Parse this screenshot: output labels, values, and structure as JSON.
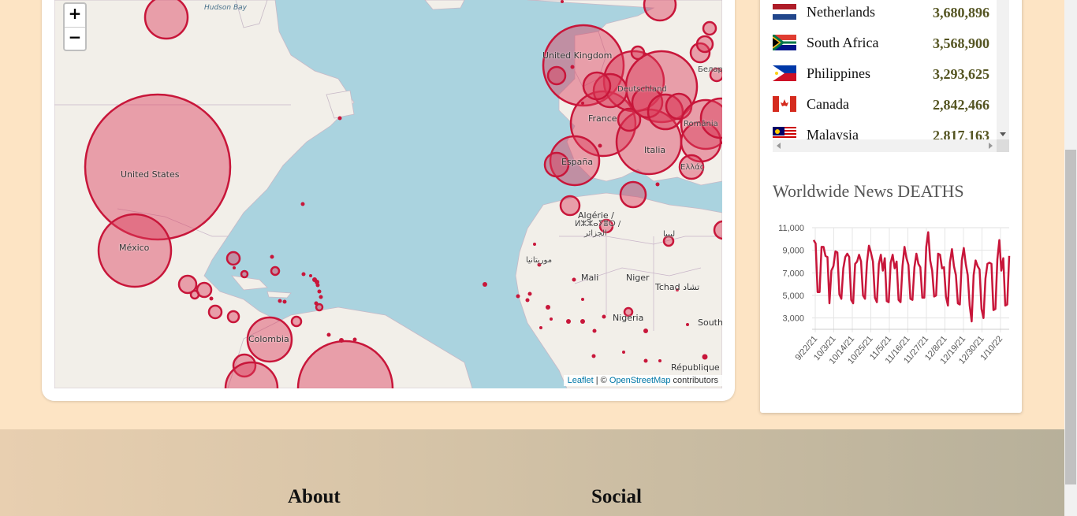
{
  "map": {
    "zoom_in": "+",
    "zoom_out": "−",
    "attribution": {
      "leaflet": "Leaflet",
      "sep": " | © ",
      "osm": "OpenStreetMap",
      "suffix": " contributors"
    },
    "labels": {
      "hudson_bay": "Hudson Bay",
      "united_states": "United States",
      "mexico": "México",
      "colombia": "Colombia",
      "united_kingdom": "United Kingdom",
      "france": "France",
      "espana": "España",
      "italia": "Italia",
      "deutschland": "Deutschland",
      "algerie": "Algérie /",
      "algerie_tifinagh": "ⵍⵣⵣⴰⵢⴻⵔ /",
      "algerie_arabic": "الجزائر",
      "mali": "Mali",
      "niger": "Niger",
      "nigeria": "Nigeria",
      "tchad": "Tchad تشاد",
      "libya": "ليبيا",
      "mauritania": "موريتانيا",
      "south": "South",
      "republique": "République",
      "ellas": "Ελλάς",
      "romania": "România",
      "belarus": "Белар"
    }
  },
  "countries": [
    {
      "name": "Netherlands",
      "value": "3,680,896",
      "flag": "nl"
    },
    {
      "name": "South Africa",
      "value": "3,568,900",
      "flag": "za"
    },
    {
      "name": "Philippines",
      "value": "3,293,625",
      "flag": "ph"
    },
    {
      "name": "Canada",
      "value": "2,842,466",
      "flag": "ca"
    },
    {
      "name": "Malaysia",
      "value": "2,817,163",
      "flag": "my"
    }
  ],
  "deaths_title": "Worldwide News DEATHS",
  "chart_data": {
    "type": "line",
    "title": "Worldwide News DEATHS",
    "ylim": [
      2000,
      11000
    ],
    "yticks": [
      "11,000",
      "9,000",
      "7,000",
      "5,000",
      "3,000"
    ],
    "ytick_values": [
      11000,
      9000,
      7000,
      5000,
      3000
    ],
    "xticks": [
      "9/22/21",
      "10/3/21",
      "10/14/21",
      "10/25/21",
      "11/5/21",
      "11/16/21",
      "11/27/21",
      "12/8/21",
      "12/19/21",
      "12/30/21",
      "1/10/22"
    ],
    "color": "#c8163a",
    "series": [
      {
        "values": [
          9900,
          9600,
          5300,
          5300,
          9300,
          9300,
          8500,
          8400,
          4300,
          7200,
          7600,
          8900,
          8800,
          5100,
          4700,
          7400,
          8400,
          8700,
          8400,
          4600,
          4300,
          7800,
          8000,
          8600,
          8000,
          5000,
          4700,
          7900,
          9400,
          8800,
          8000,
          4800,
          4400,
          7800,
          8600,
          7200,
          8300,
          4500,
          4400,
          7900,
          8600,
          7400,
          8000,
          4600,
          4400,
          7600,
          9300,
          8300,
          7700,
          4700,
          4600,
          7500,
          8700,
          7800,
          7500,
          4800,
          4800,
          9300,
          10600,
          8100,
          7200,
          4900,
          5000,
          8700,
          8600,
          7400,
          7500,
          4900,
          4100,
          7900,
          9100,
          7600,
          6800,
          4300,
          4200,
          8100,
          9200,
          7800,
          6800,
          4100,
          2700,
          6800,
          8100,
          7600,
          7300,
          3800,
          3000,
          6500,
          7800,
          7900,
          7800,
          3700,
          3800,
          8200,
          9900,
          7200,
          8300,
          4100,
          4200,
          8500
        ]
      }
    ]
  },
  "footer": {
    "about": "About",
    "social": "Social"
  }
}
